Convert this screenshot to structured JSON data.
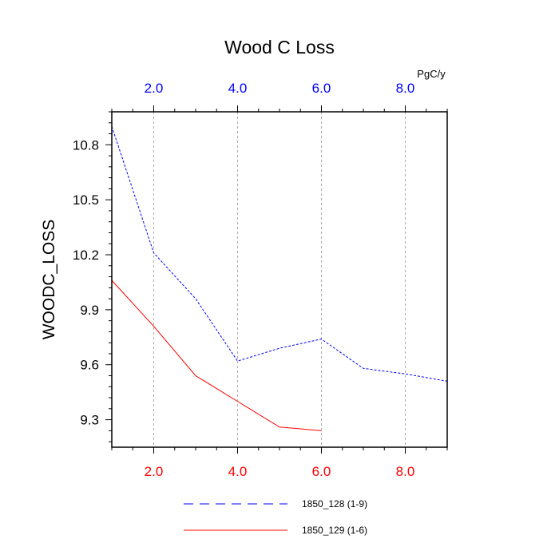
{
  "chart_data": {
    "type": "line",
    "title": "Wood C Loss",
    "units": "PgC/y",
    "ylabel": "WOODC_LOSS",
    "xlim": [
      1,
      9
    ],
    "ylim": [
      9.15,
      10.98
    ],
    "grid": "vertical dashed at major x ticks",
    "x_ticks_bottom": {
      "values": [
        2,
        4,
        6,
        8
      ],
      "labels": [
        "2.0",
        "4.0",
        "6.0",
        "8.0"
      ],
      "color": "#ff0000"
    },
    "x_ticks_top": {
      "values": [
        2,
        4,
        6,
        8
      ],
      "labels": [
        "2.0",
        "4.0",
        "6.0",
        "8.0"
      ],
      "color": "#0000ff"
    },
    "y_ticks": {
      "values": [
        9.3,
        9.6,
        9.9,
        10.2,
        10.5,
        10.8
      ],
      "labels": [
        "9.3",
        "9.6",
        "9.9",
        "10.2",
        "10.5",
        "10.8"
      ]
    },
    "legend_position": "below plot",
    "series": [
      {
        "name": "1850_128 (1-9)",
        "color": "#0000ff",
        "dash": "dashed",
        "x": [
          1,
          2,
          3,
          4,
          5,
          6,
          7,
          8,
          9
        ],
        "values": [
          10.9,
          10.21,
          9.96,
          9.62,
          9.69,
          9.74,
          9.58,
          9.55,
          9.51
        ]
      },
      {
        "name": "1850_129 (1-6)",
        "color": "#ff0000",
        "dash": "solid",
        "x": [
          1,
          2,
          3,
          4,
          5,
          6
        ],
        "values": [
          10.06,
          9.81,
          9.54,
          9.4,
          9.26,
          9.24
        ]
      }
    ]
  }
}
